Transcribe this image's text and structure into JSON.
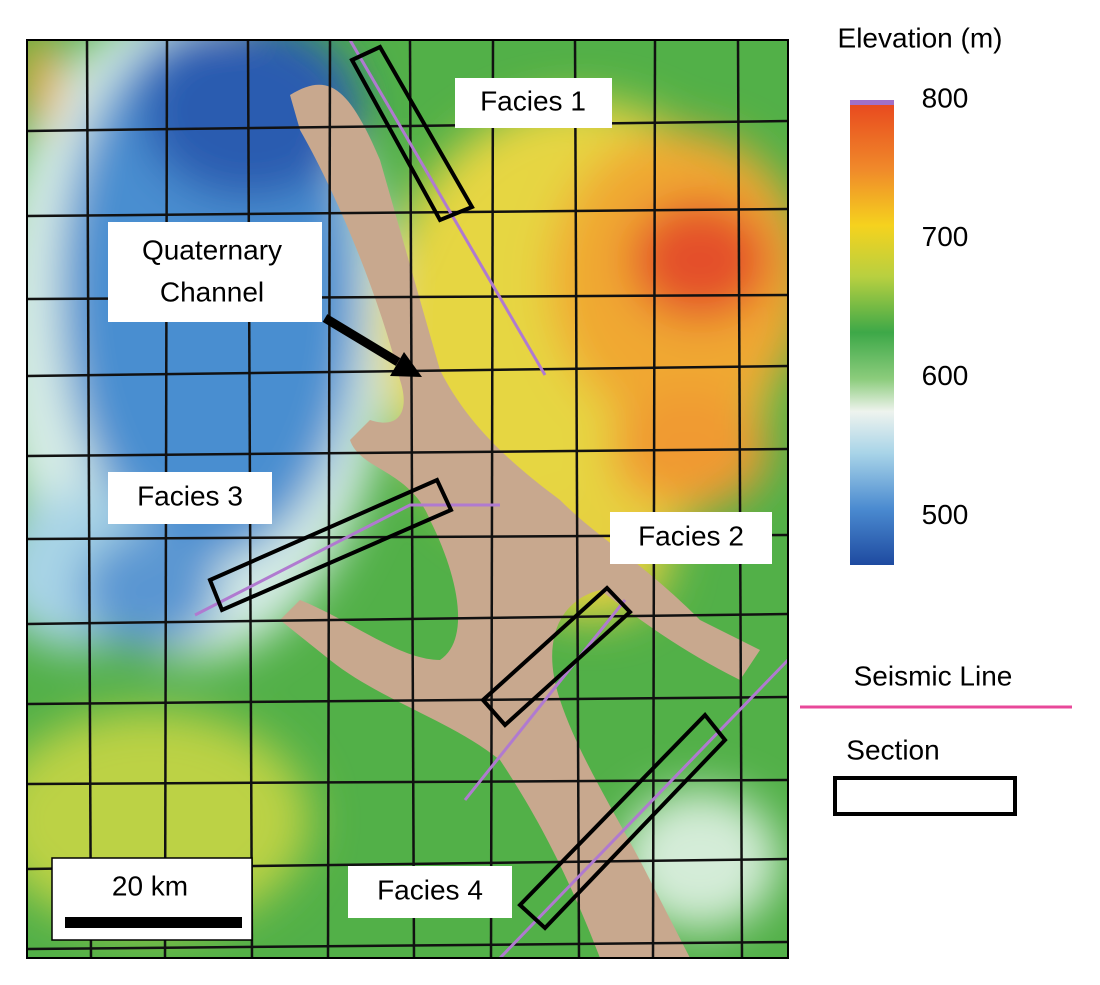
{
  "title": "Elevation (m)",
  "colorbar": {
    "range": [
      465,
      800
    ],
    "ticks": [
      800,
      700,
      600,
      500
    ]
  },
  "labels": {
    "facies_1": "Facies 1",
    "facies_2": "Facies 2",
    "facies_3": "Facies 3",
    "facies_4": "Facies 4",
    "quaternary_channel": [
      "Quaternary",
      "Channel"
    ]
  },
  "legend": {
    "seismic_line": "Seismic Line",
    "section": "Section"
  },
  "scale_bar": "20 km"
}
